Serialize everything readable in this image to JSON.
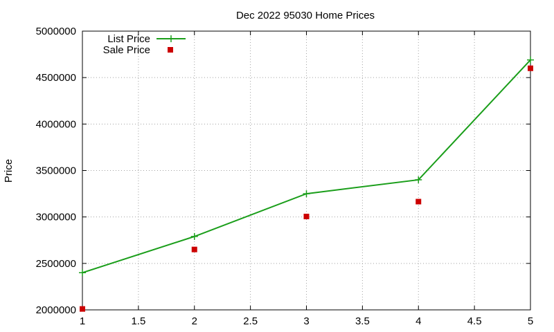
{
  "chart_data": {
    "type": "line",
    "title": "Dec 2022 95030 Home Prices",
    "xlabel": "",
    "ylabel": "Price",
    "xlim": [
      1,
      5
    ],
    "ylim": [
      2000000,
      5000000
    ],
    "xticks": [
      1,
      1.5,
      2,
      2.5,
      3,
      3.5,
      4,
      4.5,
      5
    ],
    "xtick_labels": [
      "1",
      "1.5",
      "2",
      "2.5",
      "3",
      "3.5",
      "4",
      "4.5",
      "5"
    ],
    "yticks": [
      2000000,
      2500000,
      3000000,
      3500000,
      4000000,
      4500000,
      5000000
    ],
    "ytick_labels": [
      "2000000",
      "2500000",
      "3000000",
      "3500000",
      "4000000",
      "4500000",
      "5000000"
    ],
    "grid": true,
    "legend_position": "top-left",
    "series": [
      {
        "name": "List Price",
        "style": "linespoints",
        "marker": "plus",
        "color": "#1a9e1a",
        "x": [
          1,
          2,
          3,
          4,
          5
        ],
        "y": [
          2400000,
          2790000,
          3250000,
          3400000,
          4690000
        ]
      },
      {
        "name": "Sale Price",
        "style": "points",
        "marker": "square",
        "color": "#cc0000",
        "x": [
          1,
          2,
          3,
          4,
          5
        ],
        "y": [
          2010000,
          2650000,
          3005000,
          3165000,
          4600000
        ]
      }
    ]
  }
}
